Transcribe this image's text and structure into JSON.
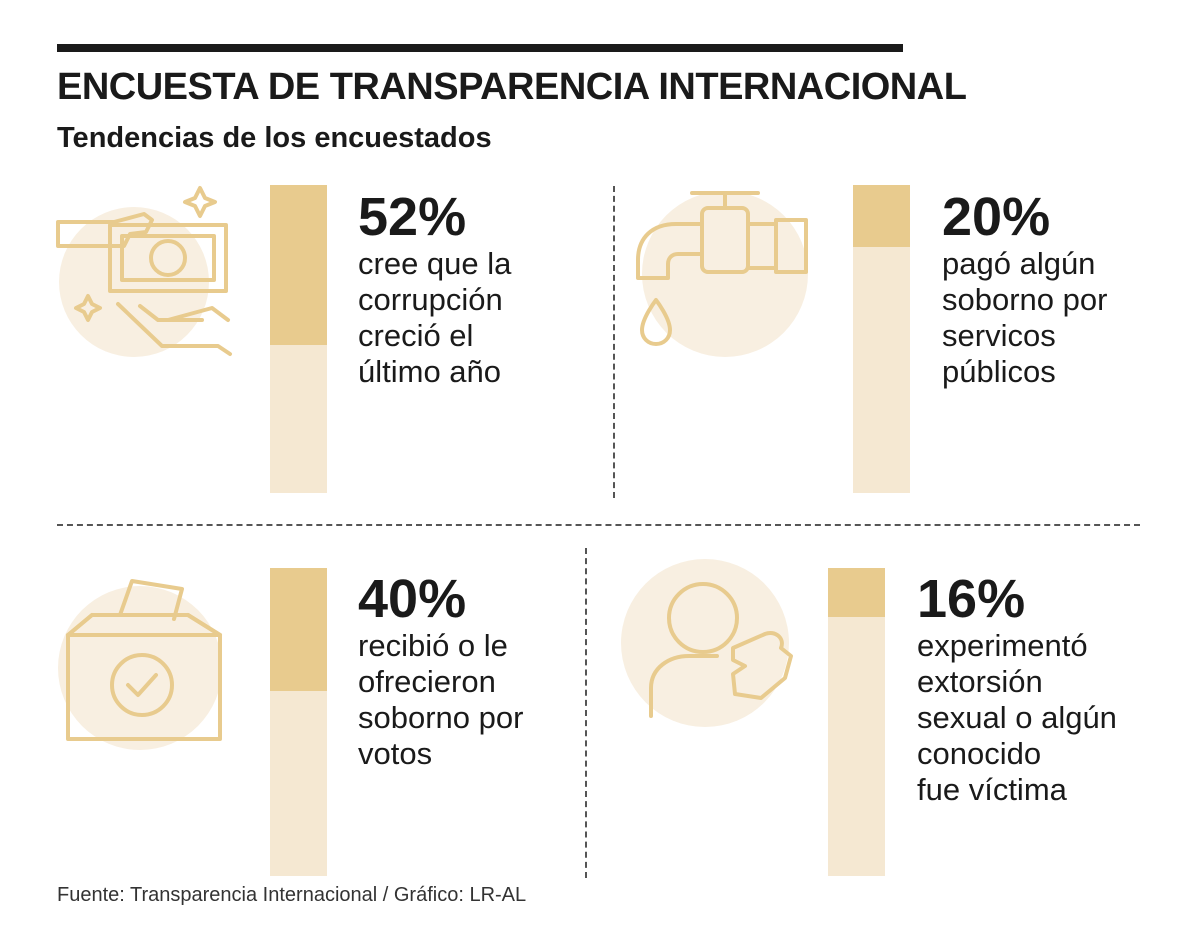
{
  "title": "ENCUESTA DE TRANSPARENCIA INTERNACIONAL",
  "subtitle": "Tendencias de los encuestados",
  "source": "Fuente: Transparencia Internacional / Gráfico: LR-AL",
  "colors": {
    "bar_bg": "#f5e8d2",
    "bar_fill": "#e8cb8e",
    "icon_stroke": "#e8cb8e",
    "icon_bg": "#f8efe1"
  },
  "chart_data": {
    "type": "bar",
    "title": "ENCUESTA DE TRANSPARENCIA INTERNACIONAL",
    "subtitle": "Tendencias de los encuestados",
    "unit": "%",
    "ylim": [
      0,
      100
    ],
    "categories": [
      "cree que la corrupción creció el último año",
      "pagó algún soborno por servicos públicos",
      "recibió o le ofrecieron soborno por votos",
      "experimentó extorsión sexual o algún conocido fue víctima"
    ],
    "values": [
      52,
      20,
      40,
      16
    ],
    "labels": [
      "52%",
      "20%",
      "40%",
      "16%"
    ],
    "descriptions": [
      "cree que la\ncorrupción\ncreció el\núltimo año",
      "pagó algún\nsoborno por\nservicos\npúblicos",
      "recibió o le\nofrecieron\nsoborno por\nvotos",
      "experimentó\nextorsión\nsexual o algún\nconocido\nfue víctima"
    ],
    "icons": [
      "money-hands-icon",
      "faucet-icon",
      "ballot-box-icon",
      "person-hand-icon"
    ]
  }
}
